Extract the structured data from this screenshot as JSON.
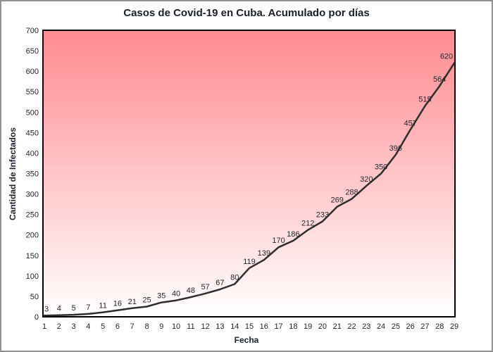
{
  "window": {
    "frame_border_color": "#909090",
    "background": "#ffffff"
  },
  "chart_data": {
    "type": "line",
    "title": "Casos de Covid-19 en Cuba. Acumulado por días",
    "xlabel": "Fecha",
    "ylabel": "Cantidad de Infectados",
    "x": [
      1,
      2,
      3,
      4,
      5,
      6,
      7,
      8,
      9,
      10,
      11,
      12,
      13,
      14,
      15,
      16,
      17,
      18,
      19,
      20,
      21,
      22,
      23,
      24,
      25,
      26,
      27,
      28,
      29
    ],
    "values": [
      3,
      4,
      5,
      7,
      11,
      16,
      21,
      25,
      35,
      40,
      48,
      57,
      67,
      80,
      119,
      139,
      170,
      186,
      212,
      233,
      269,
      288,
      320,
      350,
      396,
      457,
      515,
      564,
      620
    ],
    "ylim": [
      0,
      700
    ],
    "ytick_step": 50,
    "grid": false,
    "data_labels": true,
    "legend": "none",
    "line_color": "#2e2e2e",
    "line_width": 2.5,
    "plot_border_color": "#000000",
    "plot_bg_gradient_top": "#ff8a90",
    "plot_bg_gradient_bottom": "#ffffff",
    "text_color": "#23272e"
  }
}
